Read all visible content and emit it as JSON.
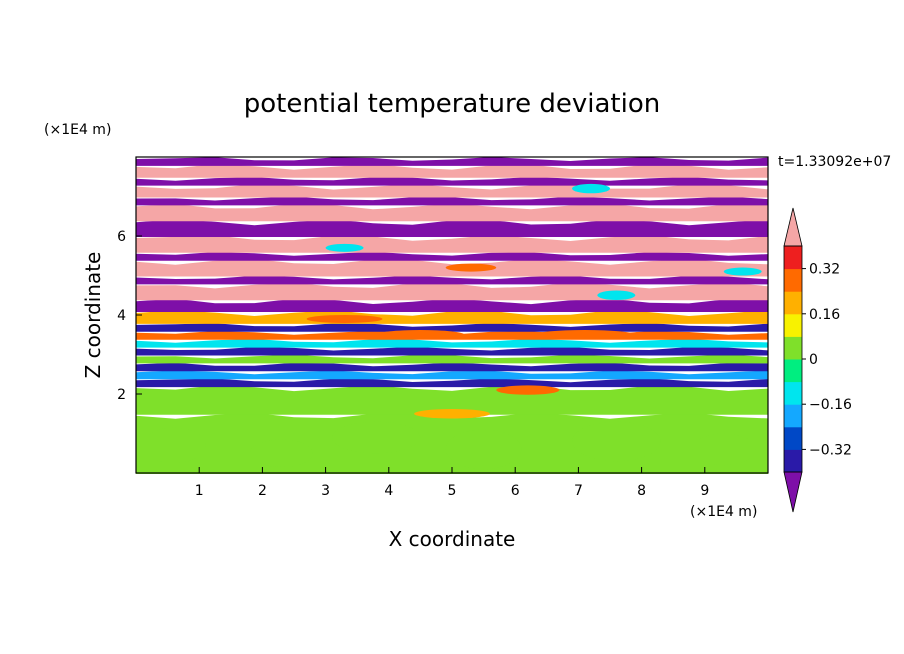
{
  "chart_data": {
    "type": "heatmap",
    "title": "potential temperature deviation",
    "xlabel": "X coordinate",
    "ylabel": "Z coordinate",
    "x_unit": "(×1E4 m)",
    "y_unit": "(×1E4 m)",
    "time_label": "t=1.33092e+07",
    "xlim": [
      0,
      10
    ],
    "ylim": [
      0,
      8
    ],
    "x_ticks": [
      "1",
      "2",
      "3",
      "4",
      "5",
      "6",
      "7",
      "8",
      "9"
    ],
    "y_ticks": [
      "2",
      "4",
      "6"
    ],
    "grid": false,
    "legend": "colorbar-right",
    "colorbar": {
      "ticks": [
        "0.32",
        "0.16",
        "0",
        "−0.16",
        "−0.32"
      ],
      "levels": [
        -0.4,
        -0.32,
        -0.24,
        -0.16,
        -0.08,
        0,
        0.08,
        0.16,
        0.24,
        0.32,
        0.4
      ],
      "colors": [
        "#7e0fa8",
        "#2a1aa8",
        "#0048c6",
        "#14a8ff",
        "#00e5ee",
        "#00ee80",
        "#7fe02a",
        "#f8f200",
        "#ffb000",
        "#ff6a00",
        "#ee1f1f",
        "#f5a6a6"
      ]
    },
    "layers": [
      {
        "z_min": 0.0,
        "z_max": 1.5,
        "value": 0.0
      },
      {
        "z_min": 1.5,
        "z_max": 2.2,
        "value": 0.05
      },
      {
        "z_min": 2.2,
        "z_max": 2.4,
        "value": -0.36
      },
      {
        "z_min": 2.4,
        "z_max": 2.6,
        "value": -0.2
      },
      {
        "z_min": 2.6,
        "z_max": 2.8,
        "value": -0.36
      },
      {
        "z_min": 2.8,
        "z_max": 3.0,
        "value": 0.04
      },
      {
        "z_min": 3.0,
        "z_max": 3.2,
        "value": -0.38
      },
      {
        "z_min": 3.2,
        "z_max": 3.4,
        "value": -0.12
      },
      {
        "z_min": 3.4,
        "z_max": 3.6,
        "value": 0.28
      },
      {
        "z_min": 3.6,
        "z_max": 3.8,
        "value": -0.38
      },
      {
        "z_min": 3.8,
        "z_max": 4.1,
        "value": 0.2
      },
      {
        "z_min": 4.1,
        "z_max": 4.4,
        "value": -0.42
      },
      {
        "z_min": 4.4,
        "z_max": 4.8,
        "value": 0.42
      },
      {
        "z_min": 4.8,
        "z_max": 5.0,
        "value": -0.42
      },
      {
        "z_min": 5.0,
        "z_max": 5.4,
        "value": 0.42
      },
      {
        "z_min": 5.4,
        "z_max": 5.6,
        "value": -0.42
      },
      {
        "z_min": 5.6,
        "z_max": 6.0,
        "value": 0.42
      },
      {
        "z_min": 6.0,
        "z_max": 6.4,
        "value": -0.42
      },
      {
        "z_min": 6.4,
        "z_max": 6.8,
        "value": 0.42
      },
      {
        "z_min": 6.8,
        "z_max": 7.0,
        "value": -0.42
      },
      {
        "z_min": 7.0,
        "z_max": 7.3,
        "value": 0.42
      },
      {
        "z_min": 7.3,
        "z_max": 7.5,
        "value": -0.42
      },
      {
        "z_min": 7.5,
        "z_max": 7.8,
        "value": 0.42
      },
      {
        "z_min": 7.8,
        "z_max": 8.0,
        "value": -0.42
      }
    ],
    "patches": [
      {
        "x": 0.6,
        "z": 0.7,
        "rx": 0.5,
        "rz": 0.45,
        "value": 0.05
      },
      {
        "x": 2.3,
        "z": 0.5,
        "rx": 0.5,
        "rz": 0.35,
        "value": 0.05
      },
      {
        "x": 3.8,
        "z": 0.9,
        "rx": 0.7,
        "rz": 0.4,
        "value": 0.05
      },
      {
        "x": 5.5,
        "z": 0.6,
        "rx": 0.6,
        "rz": 0.5,
        "value": 0.05
      },
      {
        "x": 7.6,
        "z": 0.8,
        "rx": 0.7,
        "rz": 0.5,
        "value": 0.05
      },
      {
        "x": 9.3,
        "z": 0.6,
        "rx": 0.5,
        "rz": 0.4,
        "value": 0.05
      },
      {
        "x": 5.0,
        "z": 1.5,
        "rx": 0.6,
        "rz": 0.12,
        "value": 0.2
      },
      {
        "x": 6.2,
        "z": 2.1,
        "rx": 0.5,
        "rz": 0.12,
        "value": 0.3
      },
      {
        "x": 7.1,
        "z": 3.5,
        "rx": 0.8,
        "rz": 0.12,
        "value": 0.3
      },
      {
        "x": 4.5,
        "z": 3.5,
        "rx": 0.7,
        "rz": 0.12,
        "value": 0.24
      },
      {
        "x": 3.3,
        "z": 3.9,
        "rx": 0.6,
        "rz": 0.1,
        "value": 0.3
      },
      {
        "x": 5.3,
        "z": 5.2,
        "rx": 0.4,
        "rz": 0.1,
        "value": 0.24
      },
      {
        "x": 7.2,
        "z": 7.2,
        "rx": 0.3,
        "rz": 0.12,
        "value": -0.12
      },
      {
        "x": 3.3,
        "z": 5.7,
        "rx": 0.3,
        "rz": 0.1,
        "value": -0.12
      },
      {
        "x": 9.6,
        "z": 5.1,
        "rx": 0.3,
        "rz": 0.1,
        "value": -0.12
      },
      {
        "x": 7.6,
        "z": 4.5,
        "rx": 0.3,
        "rz": 0.12,
        "value": -0.16
      }
    ]
  }
}
